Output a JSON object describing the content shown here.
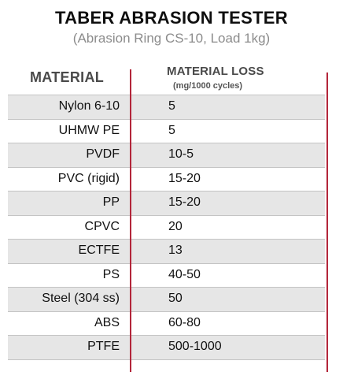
{
  "title": "TABER ABRASION TESTER",
  "subtitle": "(Abrasion Ring CS-10, Load 1kg)",
  "headers": {
    "material": "MATERIAL",
    "loss": "MATERIAL LOSS",
    "loss_unit": "(mg/1000 cycles)"
  },
  "rows": [
    {
      "material": "Nylon 6-10",
      "loss": "5"
    },
    {
      "material": "UHMW PE",
      "loss": "5"
    },
    {
      "material": "PVDF",
      "loss": "10-5"
    },
    {
      "material": "PVC (rigid)",
      "loss": "15-20"
    },
    {
      "material": "PP",
      "loss": "15-20"
    },
    {
      "material": "CPVC",
      "loss": "20"
    },
    {
      "material": "ECTFE",
      "loss": "13"
    },
    {
      "material": "PS",
      "loss": "40-50"
    },
    {
      "material": "Steel (304 ss)",
      "loss": "50"
    },
    {
      "material": "ABS",
      "loss": "60-80"
    },
    {
      "material": "PTFE",
      "loss": "500-1000"
    }
  ],
  "colors": {
    "accent_line": "#b3263a",
    "row_shade": "#e6e6e6"
  }
}
